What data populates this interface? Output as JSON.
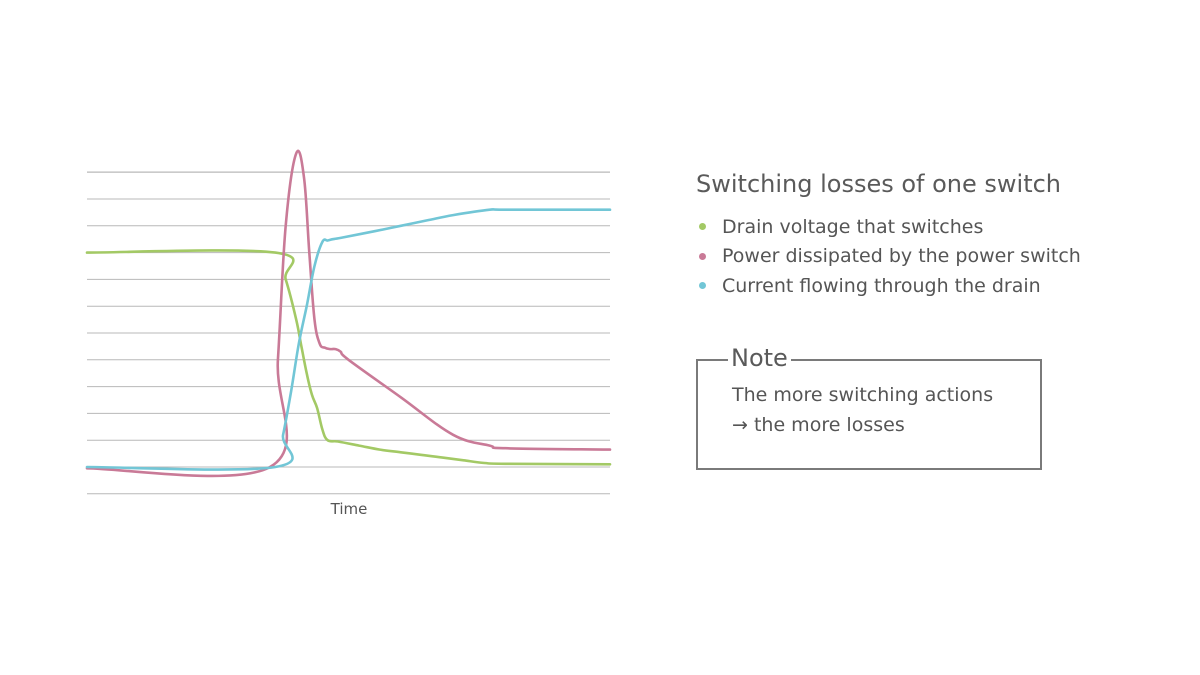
{
  "chart_data": {
    "type": "line",
    "title": "",
    "xlabel": "Time",
    "ylabel": "",
    "xlim": [
      0,
      100
    ],
    "ylim": [
      0,
      12
    ],
    "grid": true,
    "legend": "right",
    "series": [
      {
        "name": "Drain voltage that switches",
        "color": "#a3c965",
        "x": [
          0,
          36,
          38,
          40,
          41,
          42,
          43,
          44,
          45,
          46,
          48,
          52,
          56,
          60,
          64,
          68,
          72,
          76,
          80,
          100
        ],
        "y": [
          8,
          8,
          7,
          5.5,
          4.5,
          3.5,
          2.7,
          2.2,
          1.4,
          1.0,
          0.95,
          0.8,
          0.65,
          0.55,
          0.45,
          0.35,
          0.25,
          0.15,
          0.12,
          0.1
        ]
      },
      {
        "name": "Power dissipated by the power switch",
        "color": "#c97a97",
        "x": [
          0,
          35,
          36.5,
          38,
          40,
          41.5,
          42.5,
          43.5,
          44.5,
          45.5,
          46.5,
          47.5,
          48.5,
          50,
          60,
          70,
          77,
          80,
          100
        ],
        "y": [
          -0.05,
          0,
          4,
          9,
          11.7,
          10.8,
          8,
          5.5,
          4.6,
          4.45,
          4.4,
          4.4,
          4.3,
          4.0,
          2.6,
          1.2,
          0.8,
          0.7,
          0.65
        ]
      },
      {
        "name": "Current flowing through the drain",
        "color": "#72c6d6",
        "x": [
          0,
          36,
          37.5,
          39,
          40.5,
          42,
          43.5,
          45,
          46,
          47,
          48.5,
          55,
          60,
          65,
          70,
          77,
          80,
          100
        ],
        "y": [
          0,
          0,
          1.2,
          2.8,
          4.6,
          6.0,
          7.5,
          8.4,
          8.45,
          8.5,
          8.55,
          8.8,
          9.0,
          9.2,
          9.4,
          9.6,
          9.6,
          9.6
        ]
      }
    ]
  },
  "panel": {
    "title": "Switching losses of one switch"
  },
  "note": {
    "title": "Note",
    "line1": "The more switching actions",
    "line2": "→ the more losses"
  }
}
